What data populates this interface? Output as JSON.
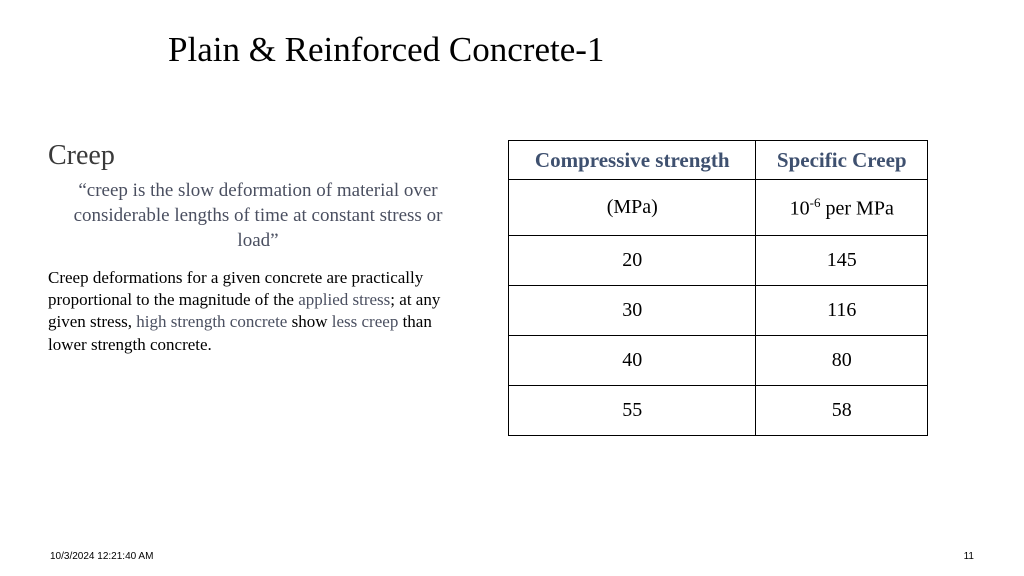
{
  "title": "Plain & Reinforced Concrete-1",
  "subtitle": "Creep",
  "quote": "“creep is the slow deformation of material over considerable lengths of time at constant stress or load”",
  "body_parts": {
    "p1": "Creep deformations for a given concrete are practically proportional to the magnitude of the ",
    "hl1": "applied stress",
    "p2": "; at any given stress, ",
    "hl2": "high strength concrete",
    "p3": " show ",
    "hl3": "less creep",
    "p4": " than lower strength concrete."
  },
  "table": {
    "headers": {
      "col1": "Compressive strength",
      "col2": "Specific Creep"
    },
    "units": {
      "col1": "(MPa)",
      "col2_pre": "10",
      "col2_sup": "-6",
      "col2_post": " per MPa"
    },
    "rows": [
      {
        "c1": "20",
        "c2": "145"
      },
      {
        "c1": "30",
        "c2": "116"
      },
      {
        "c1": "40",
        "c2": "80"
      },
      {
        "c1": "55",
        "c2": "58"
      }
    ],
    "header_color": "#3e506f",
    "border_color": "#000000"
  },
  "footer": {
    "timestamp": "10/3/2024 12:21:40 AM",
    "page": "11"
  },
  "colors": {
    "background": "#ffffff",
    "text": "#000000",
    "muted": "#4a4f60",
    "subtitle": "#3a3a3a"
  },
  "fonts": {
    "body_family": "Palatino Linotype",
    "footer_family": "Arial",
    "title_size_pt": 26,
    "subtitle_size_pt": 21,
    "quote_size_pt": 14,
    "body_size_pt": 13,
    "table_header_size_pt": 16,
    "table_cell_size_pt": 15,
    "footer_size_pt": 8
  }
}
